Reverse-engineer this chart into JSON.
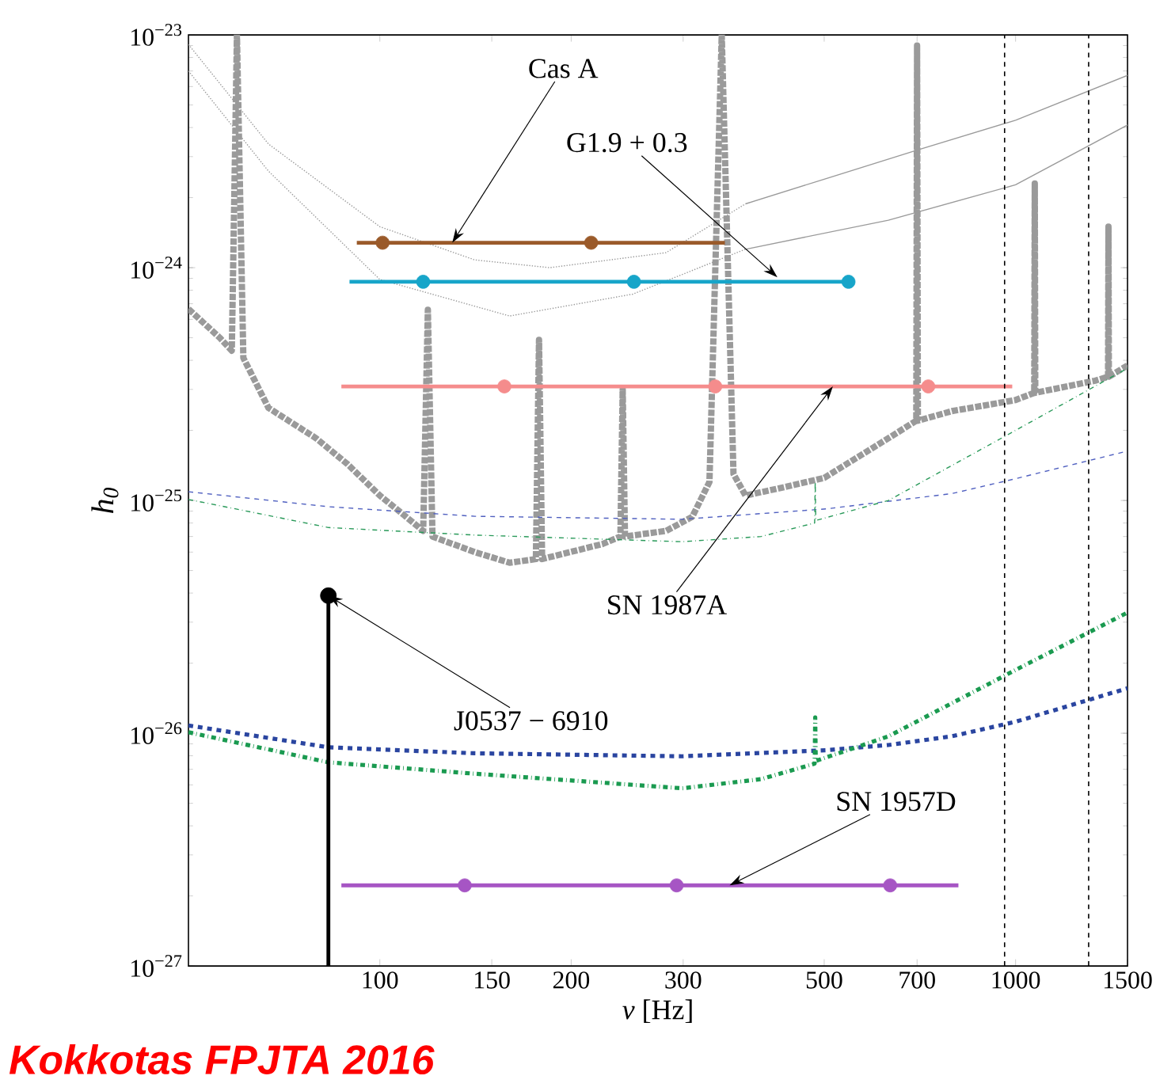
{
  "chart_data": {
    "type": "line",
    "log": "xy",
    "xlabel": "*ν* [Hz]",
    "ylabel": "h$_{0}$",
    "xlim": [
      50,
      1500
    ],
    "ylim": [
      1e-27,
      1e-23
    ],
    "xticks": [
      100,
      150,
      200,
      300,
      500,
      700,
      1000,
      1500
    ],
    "yticks": [
      {
        "value": 1e-27,
        "label": "10$^{−27}$"
      },
      {
        "value": 1e-26,
        "label": "10$^{−26}$"
      },
      {
        "value": 1e-25,
        "label": "10$^{−25}$"
      },
      {
        "value": 1e-24,
        "label": "10$^{−24}$"
      },
      {
        "value": 1e-23,
        "label": "10$^{−23}$"
      }
    ],
    "series": [
      {
        "color": "#9a9a9a",
        "line_style": "dotted",
        "x": [
          50,
          56,
          58.5,
          59.6,
          61,
          66.8,
          79.4,
          89,
          100,
          110,
          117,
          119,
          121,
          141,
          160,
          176,
          178,
          180,
          224,
          239,
          241,
          243,
          282,
          310,
          330,
          345,
          360,
          376,
          420,
          500,
          600,
          698,
          700,
          702,
          794,
          1000,
          1070,
          1072,
          1074,
          1334,
          1398,
          1400,
          1402,
          1500
        ],
        "values": [
          6.65e-25,
          5e-25,
          4.4e-25,
          1e-23,
          4.1e-25,
          2.5e-25,
          1.85e-25,
          1.43e-25,
          1.05e-25,
          8.5e-26,
          7.4e-26,
          6.6e-25,
          7e-26,
          6e-26,
          5.4e-26,
          5.6e-26,
          4.9e-25,
          5.6e-26,
          6.5e-26,
          7e-26,
          3e-25,
          7e-26,
          7.4e-26,
          8.5e-26,
          1.2e-25,
          1e-23,
          1.3e-25,
          1.05e-25,
          1.12e-25,
          1.25e-25,
          1.7e-25,
          2.2e-25,
          9e-24,
          2.2e-25,
          2.42e-25,
          2.7e-25,
          2.9e-25,
          2.3e-24,
          2.9e-25,
          3.27e-25,
          3.4e-25,
          1.5e-24,
          3.4e-25,
          3.8e-25
        ]
      },
      {
        "color": "#9a9a9a",
        "line_style": "dotted",
        "x": [
          50,
          66.8,
          100,
          141,
          185,
          282,
          376
        ],
        "values": [
          9.1e-24,
          3.4e-24,
          1.5e-24,
          1.08e-24,
          1e-24,
          1.16e-24,
          1.88e-24
        ]
      },
      {
        "color": "#9a9a9a",
        "line_style": "solid",
        "x": [
          376,
          500,
          700,
          1000,
          1500
        ],
        "values": [
          1.88e-24,
          2.4e-24,
          3.2e-24,
          4.3e-24,
          6.7e-24
        ]
      },
      {
        "color": "#9a9a9a",
        "line_style": "dotted",
        "x": [
          50,
          66.8,
          100,
          160,
          250,
          376
        ],
        "values": [
          7e-24,
          2.6e-24,
          8.9e-25,
          6.2e-25,
          7.7e-25,
          1.2e-24
        ]
      },
      {
        "color": "#9a9a9a",
        "line_style": "solid",
        "x": [
          376,
          631,
          1000,
          1500
        ],
        "values": [
          1.2e-24,
          1.6e-24,
          2.27e-24,
          4.1e-24
        ]
      },
      {
        "color": "#5060c0",
        "line_style": "dashed",
        "x": [
          50,
          83,
          141,
          299,
          504,
          794,
          1000,
          1500
        ],
        "values": [
          1.09e-25,
          9.4e-26,
          8.55e-26,
          8.3e-26,
          9.2e-26,
          1.07e-25,
          1.24e-25,
          1.63e-25
        ]
      },
      {
        "color": "#2a9a5a",
        "line_style": "dashdot",
        "x": [
          50,
          83,
          141,
          299,
          398,
          483,
          484,
          485,
          631,
          1000,
          1500
        ],
        "values": [
          1.01e-25,
          7.65e-26,
          7.1e-26,
          6.65e-26,
          7e-26,
          8e-26,
          1.2e-25,
          8.2e-26,
          1e-25,
          2e-25,
          3.7e-25
        ]
      },
      {
        "color": "#2a45a0",
        "line_style": "dashed",
        "x": [
          50,
          83,
          141,
          299,
          504,
          631,
          794,
          1000,
          1500
        ],
        "values": [
          1.08e-26,
          8.7e-27,
          8.2e-27,
          7.96e-27,
          8.45e-27,
          8.9e-27,
          9.7e-27,
          1.12e-26,
          1.56e-26
        ]
      },
      {
        "color": "#1a9a50",
        "line_style": "dashdot",
        "x": [
          50,
          83,
          141,
          299,
          398,
          483,
          484,
          485,
          631,
          1000,
          1500
        ],
        "values": [
          1.01e-26,
          7.5e-27,
          6.7e-27,
          5.8e-27,
          6.35e-27,
          7.4e-27,
          1.17e-26,
          7.6e-27,
          9.7e-27,
          1.87e-26,
          3.3e-26
        ]
      },
      {
        "color": "#9a5a2a",
        "x": [
          92,
          349
        ],
        "values": [
          1.28e-24,
          1.28e-24
        ]
      },
      {
        "type": "scatter",
        "color": "#9a5a2a",
        "x": [
          101,
          215
        ],
        "values": [
          1.28e-24,
          1.28e-24
        ]
      },
      {
        "color": "#17a5c9",
        "x": [
          89.6,
          546
        ],
        "values": [
          8.7e-25,
          8.7e-25
        ]
      },
      {
        "type": "scatter",
        "color": "#17a5c9",
        "x": [
          117,
          251,
          546
        ],
        "values": [
          8.7e-25,
          8.7e-25,
          8.7e-25
        ]
      },
      {
        "color": "#f58c8c",
        "x": [
          87,
          988
        ],
        "values": [
          3.09e-25,
          3.09e-25
        ]
      },
      {
        "type": "scatter",
        "color": "#f58c8c",
        "x": [
          157,
          337,
          729
        ],
        "values": [
          3.09e-25,
          3.09e-25,
          3.09e-25
        ]
      },
      {
        "color": "#a655c4",
        "x": [
          87,
          813
        ],
        "values": [
          2.22e-27,
          2.22e-27
        ]
      },
      {
        "type": "scatter",
        "color": "#a655c4",
        "x": [
          136,
          293,
          635
        ],
        "values": [
          2.22e-27,
          2.22e-27,
          2.22e-27
        ]
      },
      {
        "type": "lollipop",
        "color": "#000000",
        "x": [
          83
        ],
        "values": [
          3.9e-26
        ]
      }
    ],
    "ref_lines": [
      {
        "axis": "x",
        "value": 961,
        "color": "#000000",
        "line_style": "dashed"
      },
      {
        "axis": "x",
        "value": 1303,
        "color": "#000000",
        "line_style": "dashed"
      }
    ],
    "annotations": [
      {
        "text": "Cas A",
        "x": 130,
        "y": 1.28e-24
      },
      {
        "text": "G1.9 + 0.3",
        "x": 422,
        "y": 9.1e-25
      },
      {
        "text": "SN 1987A",
        "x": 516,
        "y": 3.09e-25
      },
      {
        "text": "J0537 − 6910",
        "x": 83,
        "y": 3.9e-26
      },
      {
        "text": "SN 1957D",
        "x": 355,
        "y": 2.22e-27
      },
      "Kokkotas FPJTA 2016"
    ]
  }
}
